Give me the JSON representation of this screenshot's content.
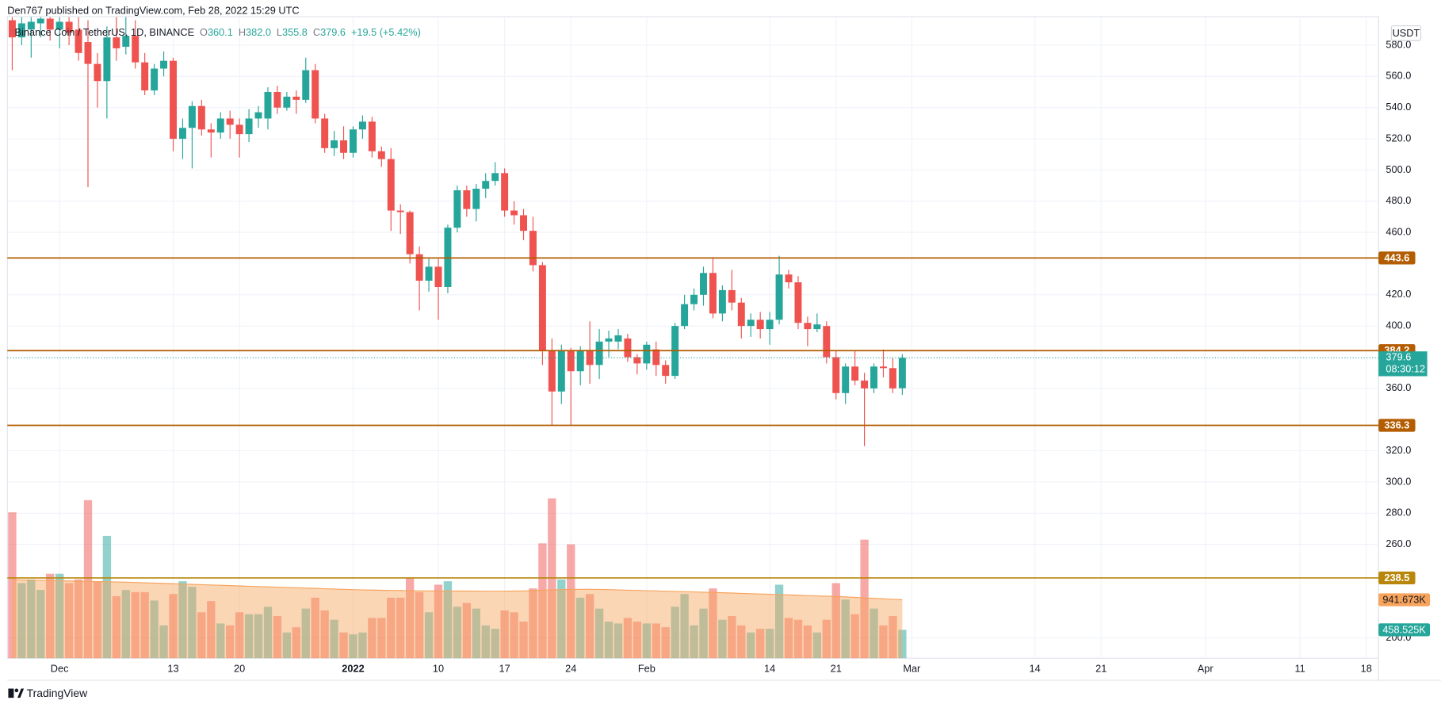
{
  "chart_data": {
    "type": "candlestick",
    "header": "Den767 published on TradingView.com, Feb 28, 2022 15:29 UTC",
    "symbol": "Binance Coin / TetherUS, 1D, BINANCE",
    "ohlc_letters": [
      "O",
      "H",
      "L",
      "C"
    ],
    "legend_values": [
      "360.1",
      "382.0",
      "355.8",
      "379.6"
    ],
    "change": "+19.5 (+5.42%)",
    "currency": "USDT",
    "footer": "TradingView",
    "up_color": "#26a69a",
    "down_color": "#ef5350",
    "ylim": [
      187,
      598.3
    ],
    "yticks": [
      {
        "value": 200,
        "label": "200.0"
      },
      {
        "value": 260,
        "label": "260.0"
      },
      {
        "value": 280,
        "label": "280.0"
      },
      {
        "value": 300,
        "label": "300.0"
      },
      {
        "value": 320,
        "label": "320.0"
      },
      {
        "value": 360,
        "label": "360.0"
      },
      {
        "value": 400,
        "label": "400.0"
      },
      {
        "value": 420,
        "label": "420.0"
      },
      {
        "value": 460,
        "label": "460.0"
      },
      {
        "value": 480,
        "label": "480.0"
      },
      {
        "value": 500,
        "label": "500.0"
      },
      {
        "value": 520,
        "label": "520.0"
      },
      {
        "value": 540,
        "label": "540.0"
      },
      {
        "value": 560,
        "label": "560.0"
      },
      {
        "value": 580,
        "label": "580.0"
      }
    ],
    "xlim": [
      "2021-11-25",
      "2022-04-19"
    ],
    "xticks": [
      {
        "value": "2021-12-01",
        "label": "Dec"
      },
      {
        "value": "2021-12-13",
        "label": "13"
      },
      {
        "value": "2021-12-20",
        "label": "20"
      },
      {
        "value": "2022-01-01",
        "label": "2022"
      },
      {
        "value": "2022-01-10",
        "label": "10"
      },
      {
        "value": "2022-01-17",
        "label": "17"
      },
      {
        "value": "2022-01-24",
        "label": "24"
      },
      {
        "value": "2022-02-01",
        "label": "Feb"
      },
      {
        "value": "2022-02-14",
        "label": "14"
      },
      {
        "value": "2022-02-21",
        "label": "21"
      },
      {
        "value": "2022-03-01",
        "label": "Mar"
      },
      {
        "value": "2022-03-14",
        "label": "14"
      },
      {
        "value": "2022-03-21",
        "label": "21"
      },
      {
        "value": "2022-04-01",
        "label": "Apr"
      },
      {
        "value": "2022-04-11",
        "label": "11"
      },
      {
        "value": "2022-04-18",
        "label": "18"
      }
    ],
    "grid": true,
    "levels": [
      {
        "value": 443.6,
        "color": "#b35c00"
      },
      {
        "value": 384.2,
        "color": "#b35c00"
      },
      {
        "value": 336.3,
        "color": "#b35c00"
      },
      {
        "value": 238.5,
        "color": "#b8860b"
      }
    ],
    "last_price": 379.6,
    "countdown": "08:30:12",
    "volume_lim": [
      0,
      10330
    ],
    "volume_value_label": "458.525K",
    "ma_value_label": "941.673K",
    "ma_color": "#f7a35c",
    "candles": {
      "x": [
        "2021-11-26",
        "2021-11-27",
        "2021-11-28",
        "2021-11-29",
        "2021-11-30",
        "2021-12-01",
        "2021-12-02",
        "2021-12-03",
        "2021-12-04",
        "2021-12-05",
        "2021-12-06",
        "2021-12-07",
        "2021-12-08",
        "2021-12-09",
        "2021-12-10",
        "2021-12-11",
        "2021-12-12",
        "2021-12-13",
        "2021-12-14",
        "2021-12-15",
        "2021-12-16",
        "2021-12-17",
        "2021-12-18",
        "2021-12-19",
        "2021-12-20",
        "2021-12-21",
        "2021-12-22",
        "2021-12-23",
        "2021-12-24",
        "2021-12-25",
        "2021-12-26",
        "2021-12-27",
        "2021-12-28",
        "2021-12-29",
        "2021-12-30",
        "2021-12-31",
        "2022-01-01",
        "2022-01-02",
        "2022-01-03",
        "2022-01-04",
        "2022-01-05",
        "2022-01-06",
        "2022-01-07",
        "2022-01-08",
        "2022-01-09",
        "2022-01-10",
        "2022-01-11",
        "2022-01-12",
        "2022-01-13",
        "2022-01-14",
        "2022-01-15",
        "2022-01-16",
        "2022-01-17",
        "2022-01-18",
        "2022-01-19",
        "2022-01-20",
        "2022-01-21",
        "2022-01-22",
        "2022-01-23",
        "2022-01-24",
        "2022-01-25",
        "2022-01-26",
        "2022-01-27",
        "2022-01-28",
        "2022-01-29",
        "2022-01-30",
        "2022-01-31",
        "2022-02-01",
        "2022-02-02",
        "2022-02-03",
        "2022-02-04",
        "2022-02-05",
        "2022-02-06",
        "2022-02-07",
        "2022-02-08",
        "2022-02-09",
        "2022-02-10",
        "2022-02-11",
        "2022-02-12",
        "2022-02-13",
        "2022-02-14",
        "2022-02-15",
        "2022-02-16",
        "2022-02-17",
        "2022-02-18",
        "2022-02-19",
        "2022-02-20",
        "2022-02-21",
        "2022-02-22",
        "2022-02-23",
        "2022-02-24",
        "2022-02-25",
        "2022-02-26",
        "2022-02-27",
        "2022-02-28"
      ],
      "open": [
        596,
        585,
        590,
        594,
        597,
        590,
        595,
        590,
        582,
        568,
        557,
        585,
        579,
        586,
        569,
        551,
        565,
        570,
        520,
        527,
        541,
        526,
        524,
        533,
        529,
        523,
        533,
        533,
        550,
        540,
        547,
        545,
        564,
        533,
        514,
        519,
        511,
        526,
        531,
        512,
        507,
        474,
        473,
        446,
        429,
        438,
        425,
        463,
        487,
        475,
        488,
        493,
        498,
        474,
        471,
        461,
        439,
        384,
        358,
        384,
        371,
        384,
        375,
        390,
        390,
        392,
        380,
        376,
        385,
        375,
        368,
        400,
        414,
        420,
        434,
        408,
        423,
        415,
        400,
        404,
        398,
        404,
        433,
        428,
        402,
        398,
        400,
        380,
        357,
        374,
        365,
        360,
        374,
        373,
        360.1
      ],
      "high": [
        598,
        598,
        598,
        598,
        598,
        598,
        598,
        598,
        596,
        575,
        592,
        598,
        598,
        596,
        575,
        568,
        576,
        572,
        533,
        544,
        545,
        530,
        537,
        538,
        533,
        539,
        541,
        553,
        554,
        550,
        551,
        572,
        568,
        536,
        525,
        528,
        528,
        535,
        534,
        515,
        514,
        478,
        474,
        451,
        443,
        443,
        465,
        490,
        490,
        491,
        498,
        505,
        501,
        480,
        475,
        470,
        441,
        392,
        388,
        386,
        387,
        403,
        398,
        397,
        398,
        395,
        382,
        390,
        390,
        378,
        402,
        420,
        424,
        438,
        444,
        426,
        436,
        418,
        408,
        409,
        409,
        445,
        436,
        432,
        406,
        408,
        403,
        384,
        376,
        384,
        370,
        376,
        385,
        380,
        382
      ],
      "low": [
        564,
        580,
        572,
        585,
        583,
        578,
        580,
        570,
        489,
        540,
        533,
        570,
        574,
        565,
        548,
        548,
        560,
        512,
        507,
        501,
        522,
        508,
        520,
        520,
        508,
        518,
        527,
        526,
        536,
        538,
        536,
        543,
        530,
        511,
        509,
        507,
        508,
        520,
        508,
        502,
        461,
        459,
        440,
        410,
        422,
        404,
        421,
        460,
        470,
        467,
        482,
        490,
        470,
        465,
        455,
        435,
        375,
        336,
        350,
        336,
        362,
        363,
        366,
        380,
        385,
        377,
        369,
        372,
        368,
        363,
        366,
        398,
        410,
        413,
        405,
        403,
        410,
        392,
        393,
        392,
        388,
        401,
        424,
        398,
        387,
        396,
        376,
        353,
        350,
        362,
        323,
        357,
        367,
        357,
        355.8
      ],
      "close": [
        585,
        594,
        595,
        597,
        590,
        595,
        588,
        575,
        568,
        557,
        585,
        578,
        586,
        569,
        551,
        565,
        570,
        520,
        527,
        541,
        526,
        524,
        533,
        529,
        523,
        533,
        537,
        550,
        540,
        547,
        545,
        564,
        533,
        514,
        519,
        511,
        526,
        531,
        512,
        507,
        474,
        473,
        446,
        429,
        438,
        425,
        463,
        487,
        475,
        488,
        493,
        498,
        474,
        471,
        461,
        439,
        384,
        358,
        384,
        371,
        384,
        375,
        390,
        392,
        394,
        380,
        376,
        388,
        375,
        368,
        400,
        414,
        420,
        434,
        408,
        423,
        415,
        400,
        404,
        398,
        404,
        433,
        428,
        402,
        398,
        401,
        380,
        357,
        374,
        365,
        360,
        374,
        373,
        360,
        379.6
      ],
      "volume": [
        2350,
        1210,
        1270,
        1100,
        1360,
        1360,
        1210,
        1270,
        2545,
        1240,
        1970,
        1000,
        1100,
        1065,
        1065,
        930,
        530,
        1035,
        1240,
        1150,
        740,
        920,
        560,
        530,
        740,
        710,
        710,
        830,
        680,
        415,
        500,
        800,
        975,
        770,
        620,
        415,
        385,
        415,
        650,
        650,
        975,
        975,
        1300,
        1065,
        740,
        1185,
        1240,
        830,
        890,
        800,
        530,
        475,
        770,
        740,
        590,
        1125,
        1850,
        2575,
        1270,
        1835,
        975,
        1035,
        800,
        590,
        560,
        650,
        590,
        560,
        560,
        500,
        830,
        1035,
        530,
        800,
        1125,
        620,
        680,
        530,
        415,
        475,
        475,
        1185,
        650,
        620,
        530,
        415,
        620,
        1210,
        945,
        710,
        1910,
        800,
        530,
        680,
        458.525
      ],
      "ma": [
        1265,
        1262,
        1258,
        1255,
        1250,
        1248,
        1245,
        1240,
        1238,
        1235,
        1232,
        1228,
        1225,
        1220,
        1215,
        1210,
        1205,
        1200,
        1195,
        1190,
        1185,
        1180,
        1175,
        1170,
        1165,
        1160,
        1155,
        1150,
        1145,
        1140,
        1135,
        1130,
        1125,
        1120,
        1115,
        1110,
        1105,
        1100,
        1098,
        1095,
        1092,
        1090,
        1088,
        1086,
        1085,
        1084,
        1083,
        1082,
        1082,
        1081,
        1080,
        1080,
        1080,
        1082,
        1085,
        1090,
        1095,
        1100,
        1105,
        1108,
        1110,
        1110,
        1108,
        1105,
        1100,
        1096,
        1092,
        1088,
        1084,
        1080,
        1076,
        1072,
        1068,
        1064,
        1060,
        1055,
        1050,
        1045,
        1040,
        1035,
        1030,
        1025,
        1020,
        1015,
        1010,
        1005,
        1000,
        995,
        988,
        980,
        972,
        965,
        958,
        950,
        941.673
      ]
    }
  }
}
